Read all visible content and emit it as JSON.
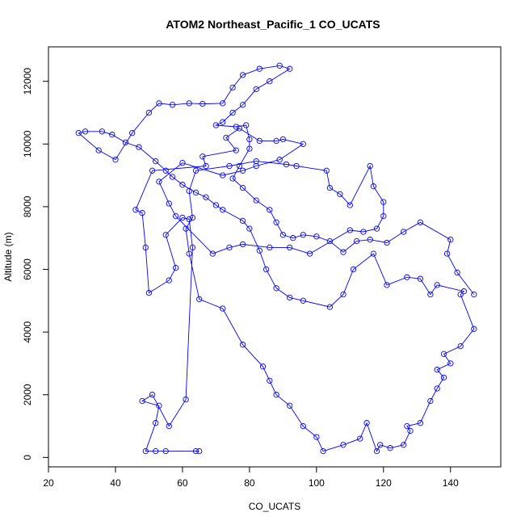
{
  "chart_data": {
    "type": "line",
    "title": "ATOM2 Northeast_Pacific_1 CO_UCATS",
    "xlabel": "CO_UCATS",
    "ylabel": "Altitude (m)",
    "xlim": [
      20,
      155
    ],
    "ylim": [
      -300,
      13100
    ],
    "xticks": [
      20,
      40,
      60,
      80,
      100,
      120,
      140
    ],
    "yticks": [
      0,
      2000,
      4000,
      6000,
      8000,
      10000,
      12000
    ],
    "grid": false,
    "legend": "none",
    "series_color": "#0000ff",
    "marker": "open-circle",
    "series": [
      {
        "values": [
          [
            64,
            200
          ],
          [
            65,
            200
          ],
          [
            55,
            200
          ],
          [
            52,
            200
          ],
          [
            49,
            200
          ],
          [
            52,
            1100
          ],
          [
            53,
            1650
          ],
          [
            48,
            1800
          ],
          [
            51,
            2000
          ],
          [
            56,
            1000
          ],
          [
            61,
            1850
          ],
          [
            63,
            6700
          ],
          [
            62,
            7600
          ],
          [
            60,
            7650
          ],
          [
            55,
            7100
          ],
          [
            58,
            6050
          ],
          [
            56,
            5650
          ],
          [
            50,
            5250
          ],
          [
            49,
            6700
          ],
          [
            48,
            7800
          ],
          [
            46,
            7900
          ],
          [
            51,
            9150
          ],
          [
            67,
            9300
          ],
          [
            66,
            9600
          ],
          [
            76,
            9800
          ],
          [
            73,
            10200
          ],
          [
            77,
            10500
          ],
          [
            83,
            10100
          ],
          [
            88,
            10100
          ],
          [
            90,
            10150
          ],
          [
            96,
            10000
          ],
          [
            89,
            9500
          ],
          [
            82,
            9300
          ],
          [
            78,
            9150
          ],
          [
            72,
            9000
          ],
          [
            60,
            9400
          ],
          [
            53,
            8800
          ],
          [
            56,
            8100
          ],
          [
            58,
            7700
          ],
          [
            69,
            6500
          ],
          [
            74,
            6700
          ],
          [
            78,
            6800
          ],
          [
            86,
            6700
          ],
          [
            92,
            6700
          ],
          [
            98,
            6500
          ],
          [
            110,
            7250
          ],
          [
            114,
            7200
          ],
          [
            118,
            7300
          ],
          [
            120,
            7700
          ],
          [
            120,
            8150
          ],
          [
            117,
            8650
          ],
          [
            116,
            9300
          ],
          [
            110,
            8050
          ],
          [
            107,
            8400
          ],
          [
            104,
            8600
          ],
          [
            103,
            9150
          ],
          [
            94,
            9300
          ],
          [
            91,
            9350
          ],
          [
            82,
            9450
          ],
          [
            74,
            9300
          ],
          [
            64,
            9150
          ],
          [
            62,
            8500
          ],
          [
            63,
            7650
          ],
          [
            61,
            7300
          ],
          [
            62,
            6500
          ],
          [
            65,
            5050
          ],
          [
            72,
            4750
          ],
          [
            78,
            3600
          ],
          [
            84,
            2900
          ],
          [
            86,
            2450
          ],
          [
            88,
            2000
          ],
          [
            92,
            1650
          ],
          [
            96,
            1000
          ],
          [
            100,
            650
          ],
          [
            102,
            200
          ],
          [
            108,
            400
          ],
          [
            113,
            600
          ],
          [
            115,
            1100
          ],
          [
            118,
            200
          ],
          [
            119,
            400
          ],
          [
            122,
            300
          ],
          [
            126,
            400
          ],
          [
            128,
            850
          ],
          [
            127,
            1000
          ],
          [
            131,
            1100
          ],
          [
            134,
            1800
          ],
          [
            136,
            2200
          ],
          [
            138,
            2550
          ],
          [
            136,
            2800
          ],
          [
            140,
            3000
          ],
          [
            138,
            3300
          ],
          [
            143,
            3550
          ],
          [
            147,
            4100
          ],
          [
            143,
            5200
          ],
          [
            144,
            5300
          ],
          [
            136,
            5500
          ],
          [
            134,
            5200
          ],
          [
            131,
            5700
          ],
          [
            127,
            5750
          ],
          [
            121,
            5500
          ],
          [
            117,
            6500
          ],
          [
            111,
            6000
          ],
          [
            108,
            5200
          ],
          [
            104,
            4800
          ],
          [
            96,
            5000
          ],
          [
            92,
            5100
          ],
          [
            88,
            5400
          ],
          [
            85,
            6000
          ],
          [
            83,
            6600
          ],
          [
            80,
            7300
          ],
          [
            78,
            7550
          ],
          [
            72,
            7900
          ],
          [
            70,
            8050
          ],
          [
            67,
            8300
          ],
          [
            64,
            8450
          ],
          [
            60,
            8700
          ],
          [
            57,
            8950
          ],
          [
            55,
            9150
          ],
          [
            52,
            9450
          ],
          [
            47,
            9900
          ],
          [
            43,
            10050
          ],
          [
            39,
            10300
          ],
          [
            36,
            10400
          ],
          [
            31,
            10400
          ],
          [
            29,
            10350
          ],
          [
            35,
            9800
          ],
          [
            40,
            9500
          ],
          [
            45,
            10350
          ],
          [
            50,
            11000
          ],
          [
            53,
            11300
          ],
          [
            57,
            11250
          ],
          [
            62,
            11300
          ],
          [
            66,
            11280
          ],
          [
            72,
            11300
          ],
          [
            75,
            11800
          ],
          [
            78,
            12200
          ],
          [
            83,
            12400
          ],
          [
            89,
            12500
          ],
          [
            92,
            12400
          ],
          [
            86,
            12000
          ],
          [
            82,
            11750
          ],
          [
            78,
            11250
          ],
          [
            75,
            11000
          ],
          [
            72,
            10700
          ],
          [
            70,
            10600
          ],
          [
            76,
            10550
          ],
          [
            79,
            10600
          ],
          [
            80,
            10150
          ],
          [
            80,
            9850
          ],
          [
            77,
            9300
          ],
          [
            75,
            8900
          ],
          [
            78,
            8600
          ],
          [
            82,
            8200
          ],
          [
            86,
            7900
          ],
          [
            88,
            7500
          ],
          [
            90,
            7100
          ],
          [
            93,
            7000
          ],
          [
            96,
            7100
          ],
          [
            100,
            7050
          ],
          [
            104,
            6900
          ],
          [
            108,
            6550
          ],
          [
            112,
            6900
          ],
          [
            116,
            6950
          ],
          [
            121,
            6850
          ],
          [
            126,
            7200
          ],
          [
            131,
            7500
          ],
          [
            140,
            6950
          ],
          [
            139,
            6500
          ],
          [
            142,
            5900
          ],
          [
            147,
            5200
          ]
        ]
      }
    ]
  }
}
